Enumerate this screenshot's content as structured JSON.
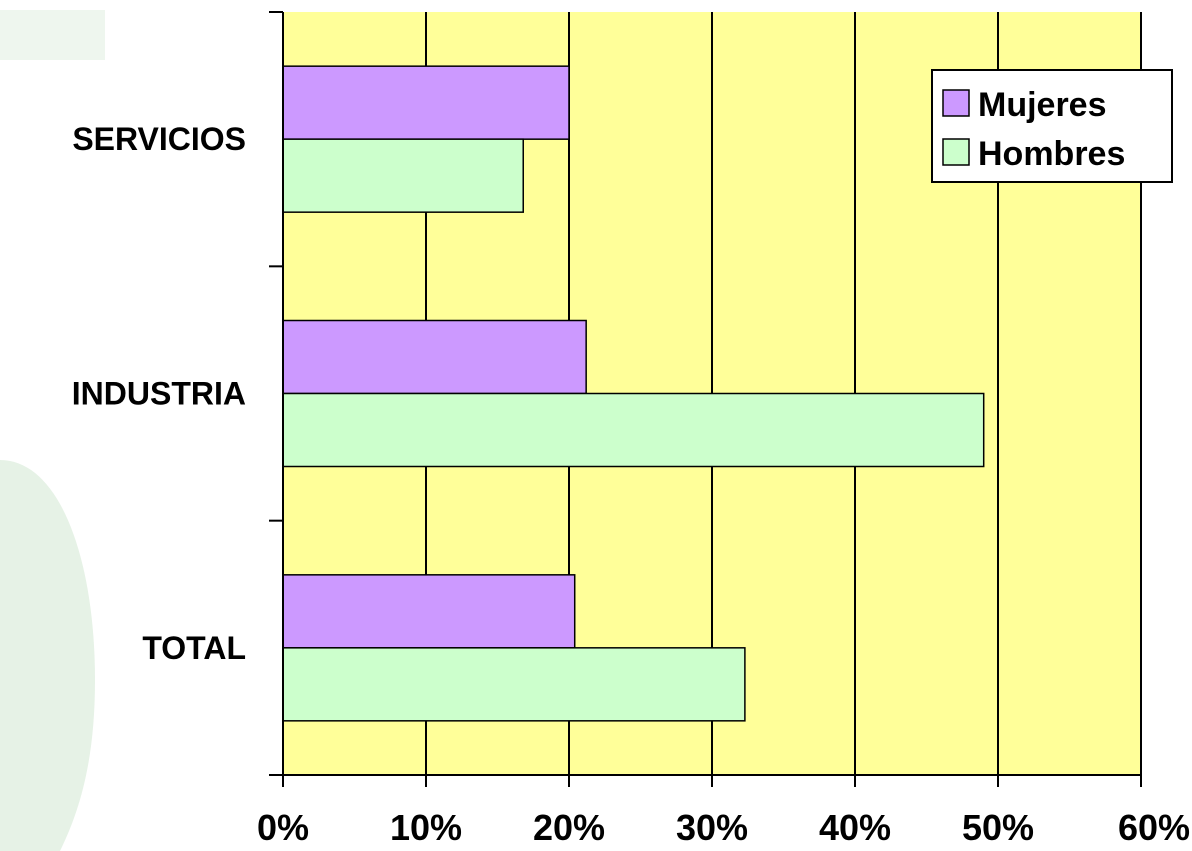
{
  "chart_data": {
    "type": "bar",
    "orientation": "horizontal",
    "categories": [
      "SERVICIOS",
      "INDUSTRIA",
      "TOTAL"
    ],
    "series": [
      {
        "name": "Mujeres",
        "values": [
          20,
          21.2,
          20.4
        ],
        "color": "#cc99ff"
      },
      {
        "name": "Hombres",
        "values": [
          16.8,
          49,
          32.3
        ],
        "color": "#ccffcc"
      }
    ],
    "xlim": [
      0,
      60
    ],
    "x_ticks": [
      0,
      10,
      20,
      30,
      40,
      50,
      60
    ],
    "x_tick_labels": [
      "0%",
      "10%",
      "20%",
      "30%",
      "40%",
      "50%",
      "60%"
    ],
    "grid": "vertical",
    "legend": {
      "position": "top-right",
      "labels": [
        "Mujeres",
        "Hombres"
      ]
    },
    "plot_background": "#ffff99"
  }
}
